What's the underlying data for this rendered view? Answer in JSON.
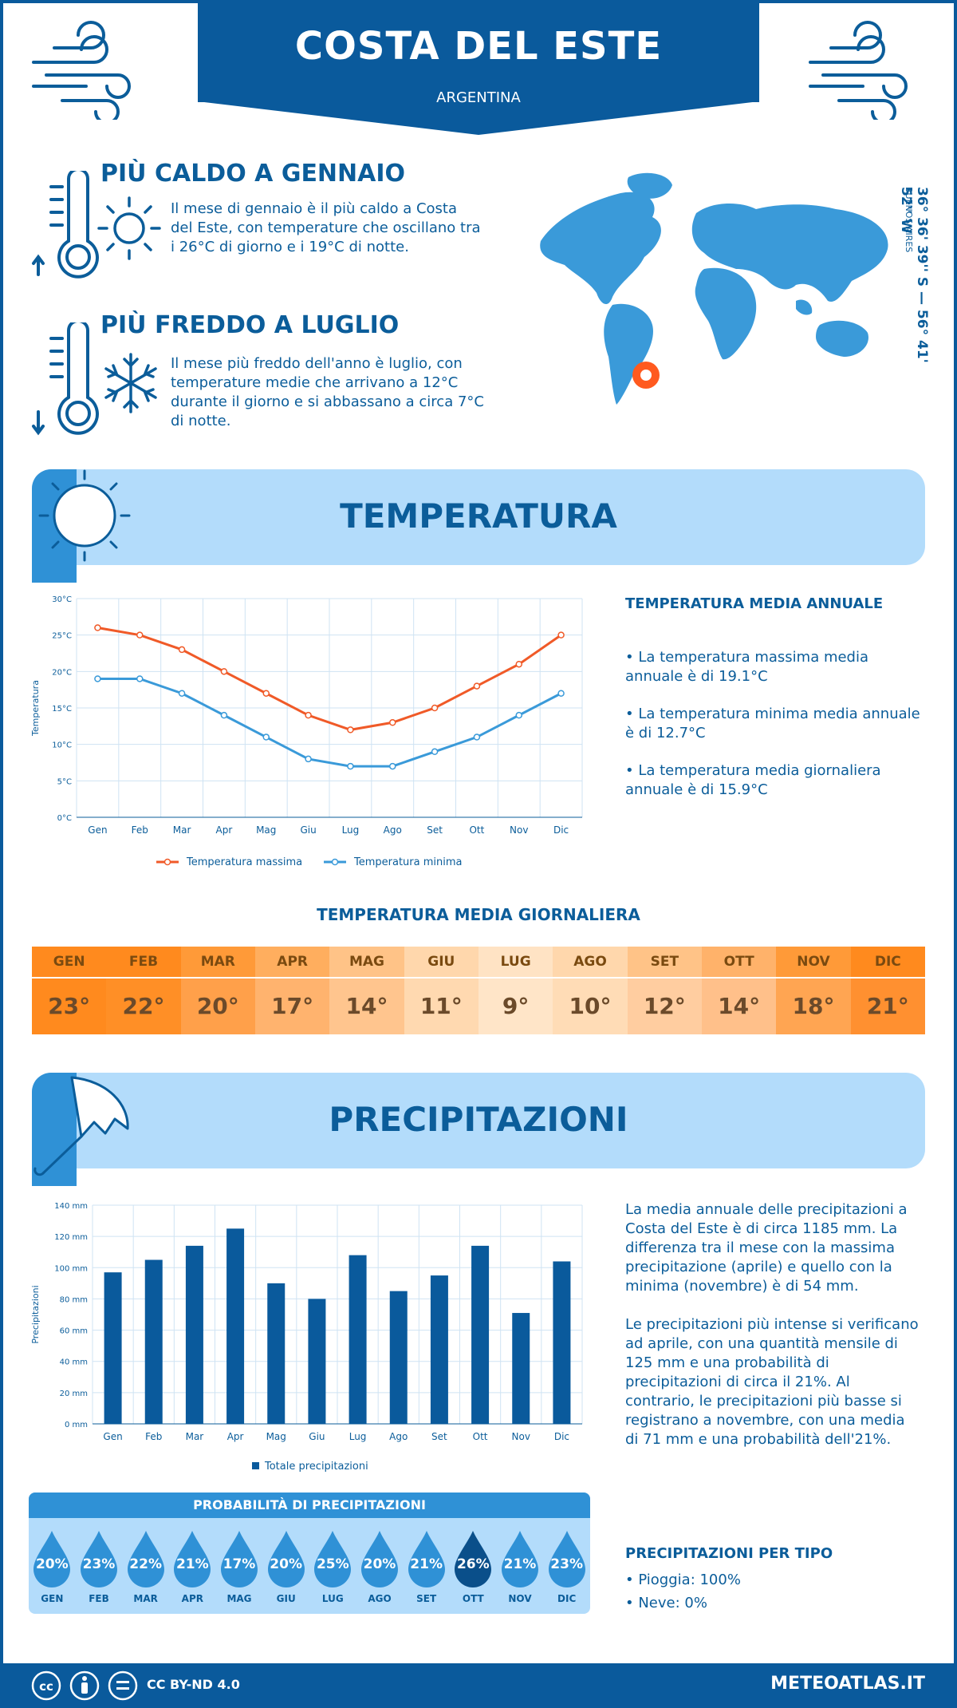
{
  "header": {
    "city": "COSTA DEL ESTE",
    "country": "ARGENTINA"
  },
  "warmest": {
    "title": "PIÙ CALDO A GENNAIO",
    "text": "Il mese di gennaio è il più caldo a Costa del Este, con temperature che oscillano tra i 26°C di giorno e i 19°C di notte."
  },
  "coldest": {
    "title": "PIÙ FREDDO A LUGLIO",
    "text": "Il mese più freddo dell'anno è luglio, con temperature medie che arrivano a 12°C durante il giorno e si abbassano a circa 7°C di notte."
  },
  "map": {
    "coords": "36° 36' 39'' S — 56° 41' 52'' W",
    "region": "BUENOS AIRES"
  },
  "temperature": {
    "banner_title": "TEMPERATURA",
    "annual_heading": "TEMPERATURA MEDIA ANNUALE",
    "bullets": [
      "• La temperatura massima media annuale è di 19.1°C",
      "• La temperatura minima media annuale è di 12.7°C",
      "• La temperatura media giornaliera annuale è di 15.9°C"
    ],
    "daily_heading": "TEMPERATURA MEDIA GIORNALIERA",
    "months": [
      "GEN",
      "FEB",
      "MAR",
      "APR",
      "MAG",
      "GIU",
      "LUG",
      "AGO",
      "SET",
      "OTT",
      "NOV",
      "DIC"
    ],
    "daily_values": [
      "23°",
      "22°",
      "20°",
      "17°",
      "14°",
      "11°",
      "9°",
      "10°",
      "12°",
      "14°",
      "18°",
      "21°"
    ],
    "daily_colors_head": [
      "#ff8a1e",
      "#ff8a1e",
      "#ff9a38",
      "#ffae5e",
      "#ffc387",
      "#ffd7ac",
      "#ffe3c4",
      "#ffd7ac",
      "#ffc387",
      "#ffb26a",
      "#ff9a38",
      "#ff8a1e"
    ],
    "daily_colors_val": [
      "#ff8a1e",
      "#ff8f26",
      "#ffa04a",
      "#ffb36e",
      "#ffc58e",
      "#ffd9b0",
      "#ffe5c8",
      "#ffdcb6",
      "#ffcda0",
      "#ffc08a",
      "#ffa552",
      "#ff9030"
    ]
  },
  "precipitation": {
    "banner_title": "PRECIPITAZIONI",
    "para1": "La media annuale delle precipitazioni a Costa del Este è di circa 1185 mm. La differenza tra il mese con la massima precipitazione (aprile) e quello con la minima (novembre) è di 54 mm.",
    "para2": "Le precipitazioni più intense si verificano ad aprile, con una quantità mensile di 125 mm e una probabilità di precipitazioni di circa il 21%. Al contrario, le precipitazioni più basse si registrano a novembre, con una media di 71 mm e una probabilità dell'21%.",
    "prob_heading": "PROBABILITÀ DI PRECIPITAZIONI",
    "prob_values": [
      "20%",
      "23%",
      "22%",
      "21%",
      "17%",
      "20%",
      "25%",
      "20%",
      "21%",
      "26%",
      "21%",
      "23%"
    ],
    "prob_months": [
      "GEN",
      "FEB",
      "MAR",
      "APR",
      "MAG",
      "GIU",
      "LUG",
      "AGO",
      "SET",
      "OTT",
      "NOV",
      "DIC"
    ],
    "type_heading": "PRECIPITAZIONI PER TIPO",
    "type_rain": "• Pioggia: 100%",
    "type_snow": "• Neve: 0%"
  },
  "chart_data": [
    {
      "type": "line",
      "categories": [
        "Gen",
        "Feb",
        "Mar",
        "Apr",
        "Mag",
        "Giu",
        "Lug",
        "Ago",
        "Set",
        "Ott",
        "Nov",
        "Dic"
      ],
      "series": [
        {
          "name": "Temperatura massima",
          "values": [
            26,
            25,
            23,
            20,
            17,
            14,
            12,
            13,
            15,
            18,
            21,
            25
          ],
          "color": "#f05a28"
        },
        {
          "name": "Temperatura minima",
          "values": [
            19,
            19,
            17,
            14,
            11,
            8,
            7,
            7,
            9,
            11,
            14,
            17
          ],
          "color": "#3a9ad9"
        }
      ],
      "ylabel": "Temperatura",
      "ylim": [
        0,
        30
      ],
      "yticks": [
        "0°C",
        "5°C",
        "10°C",
        "15°C",
        "20°C",
        "25°C",
        "30°C"
      ]
    },
    {
      "type": "bar",
      "categories": [
        "Gen",
        "Feb",
        "Mar",
        "Apr",
        "Mag",
        "Giu",
        "Lug",
        "Ago",
        "Set",
        "Ott",
        "Nov",
        "Dic"
      ],
      "series": [
        {
          "name": "Totale precipitazioni",
          "values": [
            97,
            105,
            114,
            125,
            90,
            80,
            108,
            85,
            95,
            114,
            71,
            104
          ],
          "color": "#0a5a9c"
        }
      ],
      "ylabel": "Precipitazioni",
      "ylim": [
        0,
        140
      ],
      "yticks": [
        "0 mm",
        "20 mm",
        "40 mm",
        "60 mm",
        "80 mm",
        "100 mm",
        "120 mm",
        "140 mm"
      ]
    }
  ],
  "footer": {
    "license": "CC BY-ND 4.0",
    "site": "METEOATLAS.IT"
  }
}
